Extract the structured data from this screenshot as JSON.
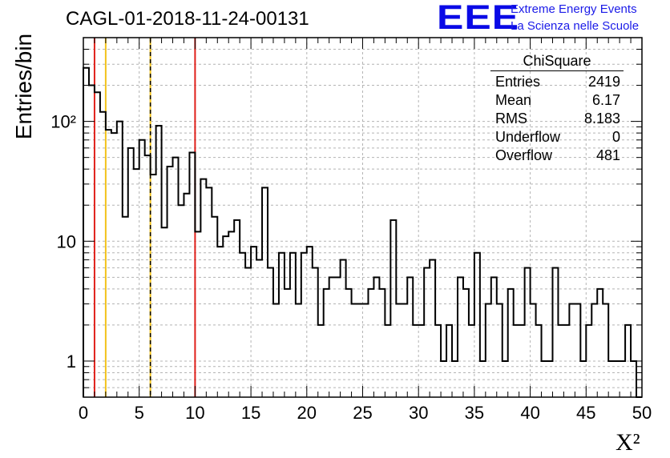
{
  "header": {
    "title": "CAGL-01-2018-11-24-00131",
    "logo_text": "EEE",
    "logo_line1": "Extreme Energy Events",
    "logo_line2": "La Scienza nelle Scuole"
  },
  "colors": {
    "histogram": "#000000",
    "red_lines": "#e0201a",
    "yellow_lines": "#f2c21b",
    "grid": "#b4b4b4",
    "logo": "#1010e6"
  },
  "stats_box": {
    "title": "ChiSquare",
    "rows": [
      {
        "label": "Entries",
        "value": "2419"
      },
      {
        "label": "Mean",
        "value": "6.17"
      },
      {
        "label": "RMS",
        "value": "8.183"
      },
      {
        "label": "Underflow",
        "value": "0"
      },
      {
        "label": "Overflow",
        "value": "481"
      }
    ]
  },
  "chart_data": {
    "type": "bar",
    "style": "step histogram",
    "xlabel": "X²",
    "ylabel": "Entries/bin",
    "xlim": [
      0,
      50
    ],
    "ylim": [
      0.5,
      500
    ],
    "yscale": "log",
    "grid": true,
    "bin_width": 0.5,
    "x_ticks": [
      "0",
      "5",
      "10",
      "15",
      "20",
      "25",
      "30",
      "35",
      "40",
      "45",
      "50"
    ],
    "y_ticks": [
      {
        "value": 1,
        "label": "1"
      },
      {
        "value": 10,
        "label": "10"
      },
      {
        "value": 100,
        "label": "10²"
      }
    ],
    "values": [
      280,
      200,
      175,
      120,
      85,
      80,
      100,
      16,
      60,
      40,
      70,
      52,
      36,
      92,
      13,
      42,
      50,
      20,
      25,
      55,
      12,
      33,
      28,
      16,
      9,
      11,
      12,
      15,
      8,
      6,
      9,
      7,
      28,
      6,
      3,
      8,
      4,
      8,
      3,
      8,
      9,
      6,
      2,
      4,
      5,
      5,
      7,
      4,
      3,
      3,
      3,
      4,
      5,
      4,
      2,
      15,
      3,
      3,
      5,
      2,
      2,
      6,
      7,
      2,
      1,
      2,
      1,
      5,
      4,
      2,
      8,
      1,
      3,
      5,
      3,
      1,
      4,
      2,
      2,
      6,
      3,
      2,
      1,
      1,
      6,
      2,
      2,
      3,
      3,
      1,
      2,
      3,
      4,
      3,
      1,
      1,
      1,
      2,
      1,
      0.5
    ],
    "vertical_lines": [
      {
        "x": 1,
        "color": "red",
        "style": "solid"
      },
      {
        "x": 2,
        "color": "yellow",
        "style": "solid"
      },
      {
        "x": 6,
        "color": "yellow",
        "style": "solid"
      },
      {
        "x": 6,
        "color": "black",
        "style": "dashed"
      },
      {
        "x": 10,
        "color": "red",
        "style": "solid"
      }
    ]
  }
}
